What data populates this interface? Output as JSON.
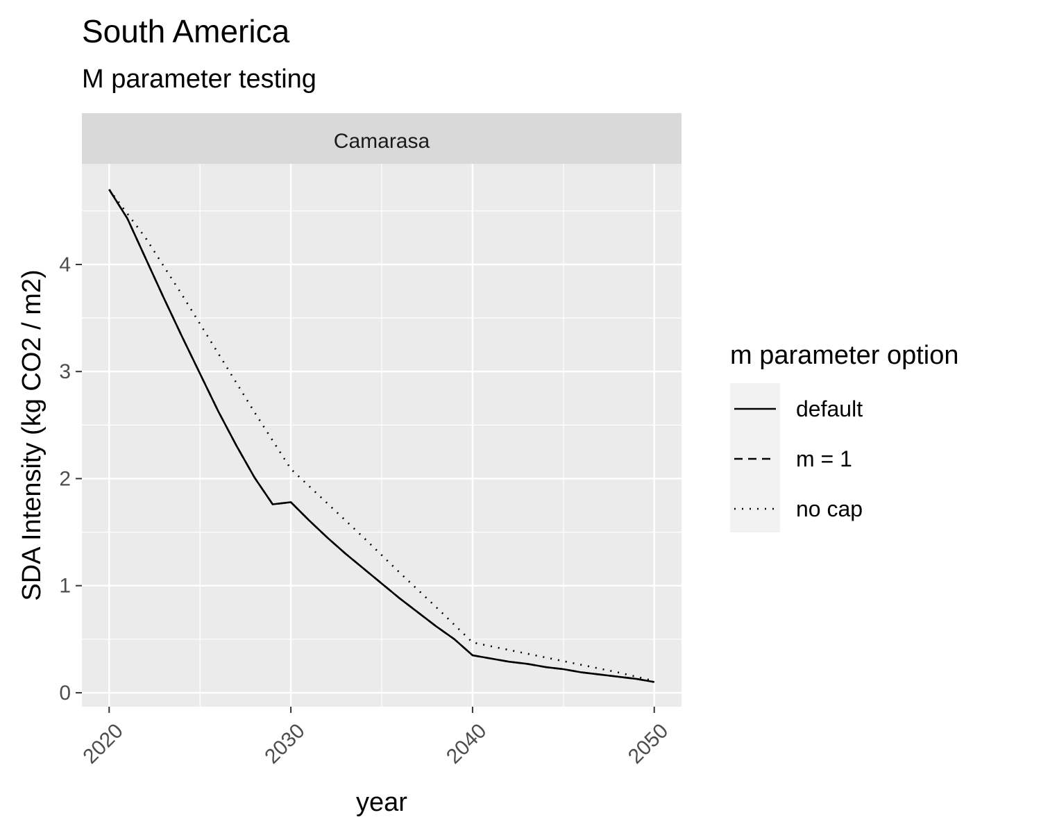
{
  "title": "South America",
  "subtitle": "M parameter testing",
  "chart_data": {
    "type": "line",
    "facet_label": "Camarasa",
    "xlabel": "year",
    "ylabel": "SDA Intensity (kg CO2 / m2)",
    "x_ticks": [
      2020,
      2030,
      2040,
      2050
    ],
    "y_ticks": [
      0,
      1,
      2,
      3,
      4
    ],
    "xlim": [
      2018.5,
      2051.5
    ],
    "ylim": [
      -0.13,
      4.94
    ],
    "grid": true,
    "legend_title": "m parameter option",
    "legend_position": "right",
    "series": [
      {
        "name": "default",
        "linetype": "solid",
        "x": [
          2020,
          2021,
          2022,
          2023,
          2024,
          2025,
          2026,
          2027,
          2028,
          2029,
          2030,
          2031,
          2032,
          2033,
          2034,
          2035,
          2036,
          2037,
          2038,
          2039,
          2040,
          2041,
          2042,
          2043,
          2044,
          2045,
          2046,
          2047,
          2048,
          2049,
          2050
        ],
        "y": [
          4.7,
          4.43,
          4.06,
          3.69,
          3.33,
          2.98,
          2.63,
          2.31,
          2.01,
          1.76,
          1.78,
          1.61,
          1.45,
          1.3,
          1.16,
          1.02,
          0.88,
          0.75,
          0.62,
          0.5,
          0.35,
          0.32,
          0.29,
          0.27,
          0.24,
          0.22,
          0.19,
          0.17,
          0.15,
          0.13,
          0.1
        ]
      },
      {
        "name": "m = 1",
        "linetype": "dashed",
        "x": [
          2020,
          2021,
          2022,
          2023,
          2024,
          2025,
          2026,
          2027,
          2028,
          2029,
          2030,
          2031,
          2032,
          2033,
          2034,
          2035,
          2036,
          2037,
          2038,
          2039,
          2040,
          2041,
          2042,
          2043,
          2044,
          2045,
          2046,
          2047,
          2048,
          2049,
          2050
        ],
        "y": [
          4.7,
          4.43,
          4.06,
          3.69,
          3.33,
          2.98,
          2.63,
          2.31,
          2.01,
          1.76,
          1.78,
          1.61,
          1.45,
          1.3,
          1.16,
          1.02,
          0.88,
          0.75,
          0.62,
          0.5,
          0.35,
          0.32,
          0.29,
          0.27,
          0.24,
          0.22,
          0.19,
          0.17,
          0.15,
          0.13,
          0.1
        ]
      },
      {
        "name": "no cap",
        "linetype": "dotted",
        "x": [
          2020,
          2022,
          2024,
          2026,
          2028,
          2030,
          2032,
          2034,
          2036,
          2038,
          2040,
          2042,
          2044,
          2046,
          2048,
          2050
        ],
        "y": [
          4.7,
          4.25,
          3.72,
          3.17,
          2.62,
          2.09,
          1.77,
          1.45,
          1.12,
          0.8,
          0.47,
          0.4,
          0.33,
          0.26,
          0.19,
          0.11
        ]
      }
    ]
  },
  "colors": {
    "panel": "#ebebeb",
    "strip": "#d9d9d9",
    "grid": "#ffffff",
    "line": "#000000",
    "tick_text": "#4d4d4d",
    "legend_key": "#f2f2f2"
  }
}
